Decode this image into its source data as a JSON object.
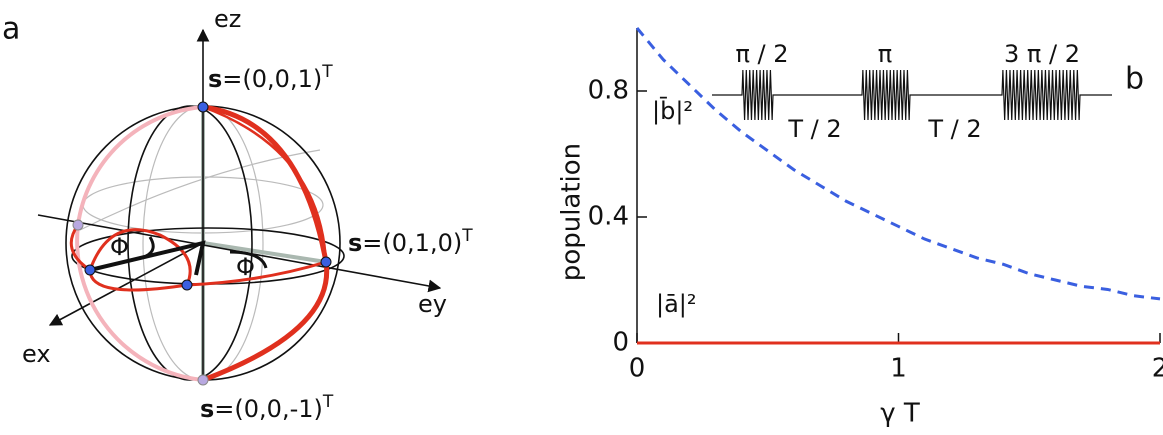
{
  "panel_a": {
    "label": "a",
    "axes": {
      "ez": "ez",
      "ey": "ey",
      "ex": "ex"
    },
    "states": [
      {
        "vector": "s",
        "value": "=(0,0,1)",
        "sup": "T"
      },
      {
        "vector": "s",
        "value": "=(0,1,0)",
        "sup": "T"
      },
      {
        "vector": "s",
        "value": "=(0,0,-1)",
        "sup": "T"
      }
    ],
    "angles": [
      "Φ",
      "Φ"
    ]
  },
  "chart_data": {
    "type": "line",
    "panel_label": "b",
    "xlabel": "γ T",
    "ylabel": "population",
    "x": [
      0,
      0.1,
      0.2,
      0.3,
      0.4,
      0.5,
      0.6,
      0.7,
      0.8,
      0.9,
      1.0,
      1.1,
      1.2,
      1.3,
      1.4,
      1.5,
      1.6,
      1.7,
      1.8,
      1.9,
      2.0
    ],
    "series": [
      {
        "name": "|b̄|²",
        "color": "#3a5fe0",
        "linestyle": "dashed",
        "values": [
          1,
          0.9,
          0.82,
          0.74,
          0.67,
          0.61,
          0.55,
          0.5,
          0.45,
          0.41,
          0.37,
          0.33,
          0.3,
          0.27,
          0.25,
          0.22,
          0.2,
          0.18,
          0.17,
          0.15,
          0.14
        ]
      },
      {
        "name": "|ā|²",
        "color": "#e0301e",
        "linestyle": "solid",
        "values": [
          0,
          0,
          0,
          0,
          0,
          0,
          0,
          0,
          0,
          0,
          0,
          0,
          0,
          0,
          0,
          0,
          0,
          0,
          0,
          0,
          0
        ]
      }
    ],
    "xlim": [
      0,
      2
    ],
    "ylim": [
      0,
      1
    ],
    "xticks": [
      0,
      1,
      2
    ],
    "yticks": [
      0,
      0.4,
      0.8
    ],
    "inset": {
      "pulses": [
        "π / 2",
        "π",
        "3 π / 2"
      ],
      "intervals": [
        "T / 2",
        "T / 2"
      ]
    }
  }
}
